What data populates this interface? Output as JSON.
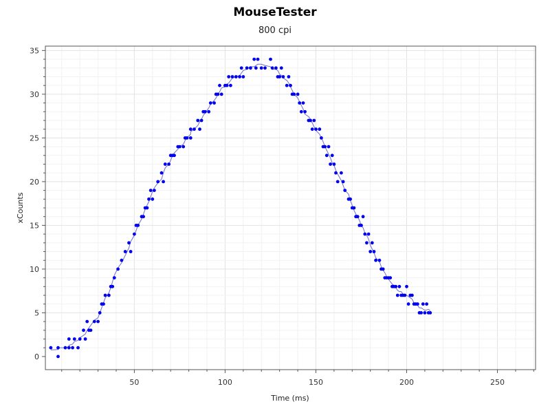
{
  "chart_data": {
    "type": "scatter",
    "title": "MouseTester",
    "subtitle": "800 cpi",
    "xlabel": "Time (ms)",
    "ylabel": "xCounts",
    "xlim": [
      1,
      271
    ],
    "ylim": [
      -1.5,
      35.5
    ],
    "xticks": [
      50,
      100,
      150,
      200,
      250
    ],
    "yticks": [
      0,
      5,
      10,
      15,
      20,
      25,
      30,
      35
    ],
    "grid": true,
    "point_color": "#0000ee",
    "line_color": "#6b6bd6",
    "series": [
      {
        "points": [
          [
            4,
            1
          ],
          [
            8,
            0
          ],
          [
            8,
            1
          ],
          [
            12,
            1
          ],
          [
            14,
            1
          ],
          [
            14,
            2
          ],
          [
            16,
            1
          ],
          [
            17,
            2
          ],
          [
            19,
            1
          ],
          [
            20,
            2
          ],
          [
            22,
            3
          ],
          [
            23,
            2
          ],
          [
            24,
            4
          ],
          [
            25,
            3
          ],
          [
            26,
            3
          ],
          [
            28,
            4
          ],
          [
            30,
            4
          ],
          [
            31,
            5
          ],
          [
            32,
            6
          ],
          [
            33,
            6
          ],
          [
            34,
            7
          ],
          [
            36,
            7
          ],
          [
            37,
            8
          ],
          [
            38,
            8
          ],
          [
            39,
            9
          ],
          [
            41,
            10
          ],
          [
            43,
            11
          ],
          [
            45,
            12
          ],
          [
            47,
            13
          ],
          [
            48,
            12
          ],
          [
            50,
            14
          ],
          [
            51,
            15
          ],
          [
            52,
            15
          ],
          [
            54,
            16
          ],
          [
            55,
            16
          ],
          [
            56,
            17
          ],
          [
            57,
            17
          ],
          [
            58,
            18
          ],
          [
            59,
            19
          ],
          [
            60,
            18
          ],
          [
            61,
            19
          ],
          [
            63,
            20
          ],
          [
            65,
            21
          ],
          [
            66,
            20
          ],
          [
            67,
            22
          ],
          [
            69,
            22
          ],
          [
            70,
            23
          ],
          [
            71,
            23
          ],
          [
            72,
            23
          ],
          [
            74,
            24
          ],
          [
            75,
            24
          ],
          [
            77,
            24
          ],
          [
            78,
            25
          ],
          [
            79,
            25
          ],
          [
            81,
            25
          ],
          [
            81,
            26
          ],
          [
            83,
            26
          ],
          [
            85,
            27
          ],
          [
            86,
            26
          ],
          [
            87,
            27
          ],
          [
            88,
            28
          ],
          [
            89,
            28
          ],
          [
            91,
            28
          ],
          [
            92,
            29
          ],
          [
            94,
            29
          ],
          [
            95,
            30
          ],
          [
            96,
            30
          ],
          [
            97,
            31
          ],
          [
            98,
            30
          ],
          [
            100,
            31
          ],
          [
            101,
            31
          ],
          [
            102,
            32
          ],
          [
            103,
            31
          ],
          [
            104,
            32
          ],
          [
            106,
            32
          ],
          [
            108,
            32
          ],
          [
            109,
            33
          ],
          [
            110,
            32
          ],
          [
            112,
            33
          ],
          [
            114,
            33
          ],
          [
            116,
            34
          ],
          [
            117,
            33
          ],
          [
            118,
            34
          ],
          [
            120,
            33
          ],
          [
            122,
            33
          ],
          [
            125,
            34
          ],
          [
            126,
            33
          ],
          [
            128,
            33
          ],
          [
            129,
            32
          ],
          [
            130,
            32
          ],
          [
            131,
            33
          ],
          [
            132,
            32
          ],
          [
            134,
            31
          ],
          [
            135,
            32
          ],
          [
            136,
            31
          ],
          [
            137,
            30
          ],
          [
            138,
            30
          ],
          [
            140,
            30
          ],
          [
            141,
            29
          ],
          [
            142,
            28
          ],
          [
            143,
            29
          ],
          [
            144,
            28
          ],
          [
            146,
            27
          ],
          [
            147,
            27
          ],
          [
            148,
            26
          ],
          [
            149,
            27
          ],
          [
            150,
            26
          ],
          [
            152,
            26
          ],
          [
            153,
            25
          ],
          [
            154,
            24
          ],
          [
            155,
            24
          ],
          [
            156,
            23
          ],
          [
            157,
            24
          ],
          [
            158,
            22
          ],
          [
            159,
            23
          ],
          [
            160,
            22
          ],
          [
            161,
            21
          ],
          [
            162,
            20
          ],
          [
            164,
            21
          ],
          [
            165,
            20
          ],
          [
            166,
            19
          ],
          [
            168,
            18
          ],
          [
            169,
            18
          ],
          [
            170,
            17
          ],
          [
            171,
            17
          ],
          [
            172,
            16
          ],
          [
            173,
            16
          ],
          [
            174,
            15
          ],
          [
            175,
            15
          ],
          [
            176,
            16
          ],
          [
            177,
            14
          ],
          [
            178,
            13
          ],
          [
            179,
            14
          ],
          [
            180,
            12
          ],
          [
            181,
            13
          ],
          [
            182,
            12
          ],
          [
            183,
            11
          ],
          [
            185,
            11
          ],
          [
            186,
            10
          ],
          [
            187,
            10
          ],
          [
            188,
            9
          ],
          [
            189,
            9
          ],
          [
            190,
            9
          ],
          [
            191,
            9
          ],
          [
            192,
            8
          ],
          [
            193,
            8
          ],
          [
            194,
            8
          ],
          [
            195,
            7
          ],
          [
            196,
            8
          ],
          [
            197,
            7
          ],
          [
            198,
            7
          ],
          [
            199,
            7
          ],
          [
            200,
            8
          ],
          [
            201,
            6
          ],
          [
            202,
            7
          ],
          [
            203,
            7
          ],
          [
            204,
            6
          ],
          [
            205,
            6
          ],
          [
            206,
            6
          ],
          [
            207,
            5
          ],
          [
            208,
            5
          ],
          [
            209,
            6
          ],
          [
            210,
            5
          ],
          [
            211,
            6
          ],
          [
            212,
            5
          ],
          [
            213,
            5
          ]
        ]
      }
    ]
  }
}
